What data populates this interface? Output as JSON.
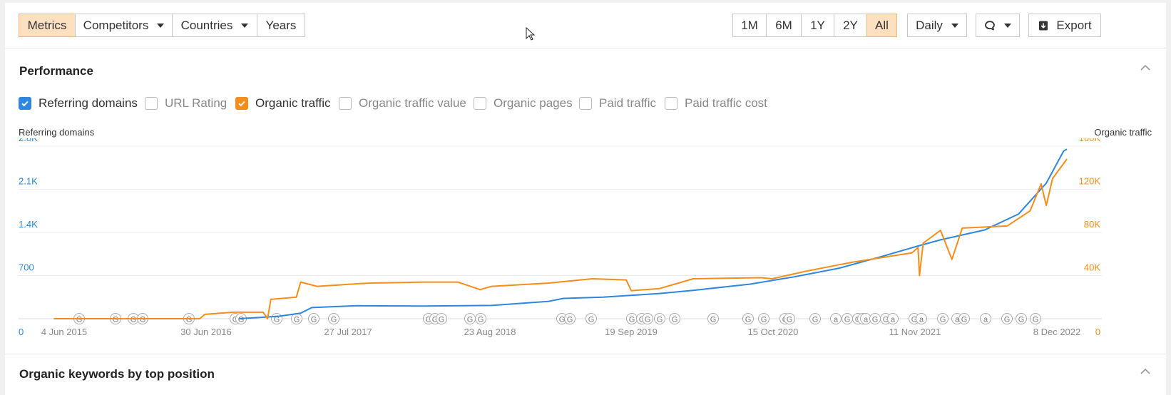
{
  "toolbar": {
    "tabs": [
      {
        "label": "Metrics",
        "active": true,
        "dropdown": false
      },
      {
        "label": "Competitors",
        "active": false,
        "dropdown": true
      },
      {
        "label": "Countries",
        "active": false,
        "dropdown": true
      },
      {
        "label": "Years",
        "active": false,
        "dropdown": false
      }
    ],
    "ranges": [
      {
        "label": "1M",
        "active": false
      },
      {
        "label": "6M",
        "active": false
      },
      {
        "label": "1Y",
        "active": false
      },
      {
        "label": "2Y",
        "active": false
      },
      {
        "label": "All",
        "active": true
      }
    ],
    "interval": "Daily",
    "export_label": "Export"
  },
  "performance": {
    "title": "Performance",
    "metrics": [
      {
        "label": "Referring domains",
        "checked": true,
        "color": "#2e86de"
      },
      {
        "label": "URL Rating",
        "checked": false
      },
      {
        "label": "Organic traffic",
        "checked": true,
        "color": "#f58d1b"
      },
      {
        "label": "Organic traffic value",
        "checked": false
      },
      {
        "label": "Organic pages",
        "checked": false
      },
      {
        "label": "Paid traffic",
        "checked": false
      },
      {
        "label": "Paid traffic cost",
        "checked": false
      }
    ]
  },
  "chart_data": {
    "type": "line",
    "left_axis_label": "Referring domains",
    "right_axis_label": "Organic traffic",
    "left_ticks": [
      "0",
      "700",
      "1.4K",
      "2.1K",
      "2.8K"
    ],
    "right_ticks": [
      "0",
      "40K",
      "80K",
      "120K",
      "160K"
    ],
    "x_ticks": [
      "4 Jun 2015",
      "30 Jun 2016",
      "27 Jul 2017",
      "23 Aug 2018",
      "19 Sep 2019",
      "15 Oct 2020",
      "11 Nov 2021",
      "8 Dec 2022"
    ],
    "left_ylim": [
      0,
      2800
    ],
    "right_ylim": [
      0,
      160000
    ],
    "series": [
      {
        "name": "Referring domains",
        "axis": "left",
        "color": "#2e86de",
        "points": [
          [
            "2016-10-15",
            0
          ],
          [
            "2017-02-01",
            40
          ],
          [
            "2017-04-01",
            90
          ],
          [
            "2017-05-01",
            180
          ],
          [
            "2017-09-01",
            210
          ],
          [
            "2018-03-01",
            205
          ],
          [
            "2018-09-01",
            215
          ],
          [
            "2019-02-01",
            280
          ],
          [
            "2019-03-15",
            330
          ],
          [
            "2019-07-01",
            350
          ],
          [
            "2019-12-01",
            410
          ],
          [
            "2020-03-01",
            460
          ],
          [
            "2020-08-01",
            560
          ],
          [
            "2020-12-01",
            680
          ],
          [
            "2021-04-01",
            820
          ],
          [
            "2021-08-01",
            1020
          ],
          [
            "2021-11-01",
            1180
          ],
          [
            "2022-01-01",
            1280
          ],
          [
            "2022-05-01",
            1440
          ],
          [
            "2022-08-01",
            1700
          ],
          [
            "2022-10-15",
            2200
          ],
          [
            "2022-12-01",
            2720
          ],
          [
            "2022-12-10",
            2750
          ]
        ]
      },
      {
        "name": "Organic traffic",
        "axis": "right",
        "color": "#f58d1b",
        "points": [
          [
            "2015-06-01",
            0
          ],
          [
            "2016-07-01",
            0
          ],
          [
            "2016-07-15",
            4000
          ],
          [
            "2016-10-01",
            6000
          ],
          [
            "2016-12-20",
            6000
          ],
          [
            "2017-01-01",
            0
          ],
          [
            "2017-01-10",
            18000
          ],
          [
            "2017-03-20",
            20000
          ],
          [
            "2017-04-01",
            34000
          ],
          [
            "2017-05-15",
            30000
          ],
          [
            "2017-10-01",
            33000
          ],
          [
            "2018-03-01",
            34000
          ],
          [
            "2018-06-01",
            34000
          ],
          [
            "2018-08-01",
            27000
          ],
          [
            "2018-09-01",
            30000
          ],
          [
            "2019-02-01",
            33000
          ],
          [
            "2019-06-01",
            37000
          ],
          [
            "2019-09-01",
            36000
          ],
          [
            "2019-09-15",
            26000
          ],
          [
            "2019-12-01",
            28000
          ],
          [
            "2020-03-01",
            37000
          ],
          [
            "2020-09-01",
            38000
          ],
          [
            "2020-10-01",
            37000
          ],
          [
            "2021-01-01",
            44000
          ],
          [
            "2021-05-01",
            52000
          ],
          [
            "2021-08-01",
            57000
          ],
          [
            "2021-10-15",
            61000
          ],
          [
            "2021-11-01",
            66000
          ],
          [
            "2021-11-05",
            40000
          ],
          [
            "2021-11-15",
            70000
          ],
          [
            "2022-01-01",
            82000
          ],
          [
            "2022-02-01",
            55000
          ],
          [
            "2022-03-01",
            84000
          ],
          [
            "2022-07-01",
            86000
          ],
          [
            "2022-09-01",
            100000
          ],
          [
            "2022-10-01",
            125000
          ],
          [
            "2022-10-15",
            105000
          ],
          [
            "2022-11-01",
            130000
          ],
          [
            "2022-12-10",
            148000
          ]
        ]
      }
    ],
    "annotation_markers": [
      "G",
      "G",
      "G",
      "G",
      "G",
      "G",
      "G",
      "G",
      "G",
      "G",
      "G",
      "G",
      "G",
      "G",
      "G",
      "G",
      "G",
      "G",
      "G",
      "G",
      "G",
      "G",
      "G",
      "G",
      "G",
      "G",
      "G",
      "G",
      "G",
      "G",
      "a",
      "G",
      "G",
      "G",
      "a",
      "G",
      "G",
      "a",
      "G",
      "a",
      "G",
      "a",
      "G",
      "a",
      "G",
      "G",
      "G"
    ]
  },
  "section2": {
    "title": "Organic keywords by top position"
  }
}
